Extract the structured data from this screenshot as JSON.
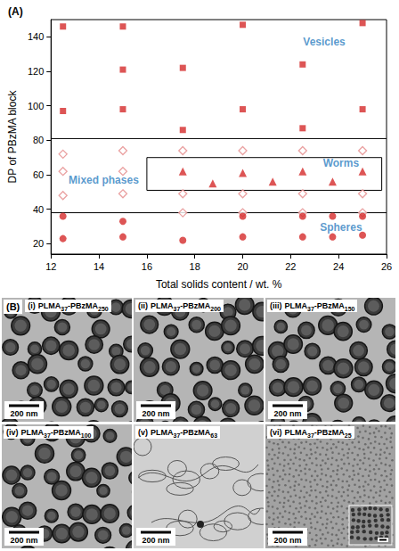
{
  "chart_data": {
    "type": "scatter",
    "title": "(A)",
    "x_label": "Total solids content / wt. %",
    "y_label": "DP of PBzMA block",
    "xlim": [
      12,
      26
    ],
    "xticks": [
      12,
      14,
      16,
      18,
      20,
      22,
      24,
      26
    ],
    "ylim": [
      14,
      150
    ],
    "yticks": [
      20,
      40,
      60,
      80,
      100,
      120,
      140
    ],
    "grid": false,
    "series": [
      {
        "name": "Vesicles",
        "color": "#d42a2a",
        "marker": "square",
        "x": [
          12.5,
          12.5,
          15,
          15,
          15,
          17.5,
          17.5,
          20,
          20,
          22.5,
          22.5,
          25,
          25
        ],
        "y": [
          146,
          97,
          146,
          121,
          98,
          122,
          86,
          147,
          98,
          124,
          87,
          148,
          98
        ],
        "label_at": [
          23.4,
          137
        ]
      },
      {
        "name": "Mixed phases",
        "color": "#e58a8a",
        "marker": "open_diamond",
        "x": [
          12.5,
          12.5,
          12.5,
          15,
          15,
          15,
          17.5,
          17.5,
          17.5,
          20,
          20,
          20,
          22.5,
          22.5,
          22.5,
          25,
          25,
          25
        ],
        "y": [
          72,
          62,
          48,
          74,
          62,
          49,
          74,
          49,
          38,
          74,
          49,
          38,
          74,
          49,
          38,
          74,
          49,
          38
        ],
        "label_at": [
          14.2,
          57
        ]
      },
      {
        "name": "Worms",
        "color": "#d42a2a",
        "marker": "triangle",
        "x": [
          17.5,
          18.75,
          20,
          21.25,
          22.5,
          23.75,
          25
        ],
        "y": [
          62,
          55,
          61,
          56,
          62,
          56,
          62
        ],
        "label_at": [
          24.1,
          66.5
        ]
      },
      {
        "name": "Spheres",
        "color": "#d42a2a",
        "marker": "circle",
        "x": [
          12.5,
          12.5,
          15,
          15,
          17.5,
          20,
          20,
          22.5,
          22.5,
          23.75,
          23.75,
          25,
          25
        ],
        "y": [
          36,
          23,
          33,
          24,
          22,
          36,
          24,
          36,
          24,
          36,
          24,
          36,
          25
        ],
        "label_at": [
          24.1,
          29.5
        ]
      }
    ],
    "boundaries": {
      "y": [
        81,
        38
      ]
    },
    "worm_region": {
      "x": [
        16,
        25.8
      ],
      "y": [
        51,
        70
      ]
    }
  },
  "micrographs": {
    "title": "(B)",
    "images": [
      {
        "numeral": "(i)",
        "label": [
          {
            "text": "PLMA"
          },
          {
            "text": "37",
            "sub": true
          },
          {
            "text": "-PBzMA"
          },
          {
            "text": "250",
            "sub": true
          }
        ],
        "scale_bar": "200 nm"
      },
      {
        "numeral": "(ii)",
        "label": [
          {
            "text": "PLMA"
          },
          {
            "text": "37",
            "sub": true
          },
          {
            "text": "-PBzMA"
          },
          {
            "text": "200",
            "sub": true
          }
        ],
        "scale_bar": "200 nm"
      },
      {
        "numeral": "(iii)",
        "label": [
          {
            "text": "PLMA"
          },
          {
            "text": "37",
            "sub": true
          },
          {
            "text": "-PBzMA"
          },
          {
            "text": "150",
            "sub": true
          }
        ],
        "scale_bar": "200 nm"
      },
      {
        "numeral": "(iv)",
        "label": [
          {
            "text": "PLMA"
          },
          {
            "text": "37",
            "sub": true
          },
          {
            "text": "-PBzMA"
          },
          {
            "text": "100",
            "sub": true
          }
        ],
        "scale_bar": "200 nm"
      },
      {
        "numeral": "(v)",
        "label": [
          {
            "text": "PLMA"
          },
          {
            "text": "37",
            "sub": true
          },
          {
            "text": "-PBzMA"
          },
          {
            "text": "63",
            "sub": true
          }
        ],
        "scale_bar": "200 nm"
      },
      {
        "numeral": "(vi)",
        "label": [
          {
            "text": "PLMA"
          },
          {
            "text": "37",
            "sub": true
          },
          {
            "text": "-PBzMA"
          },
          {
            "text": "25",
            "sub": true
          }
        ],
        "scale_bar": "200 nm"
      }
    ]
  }
}
